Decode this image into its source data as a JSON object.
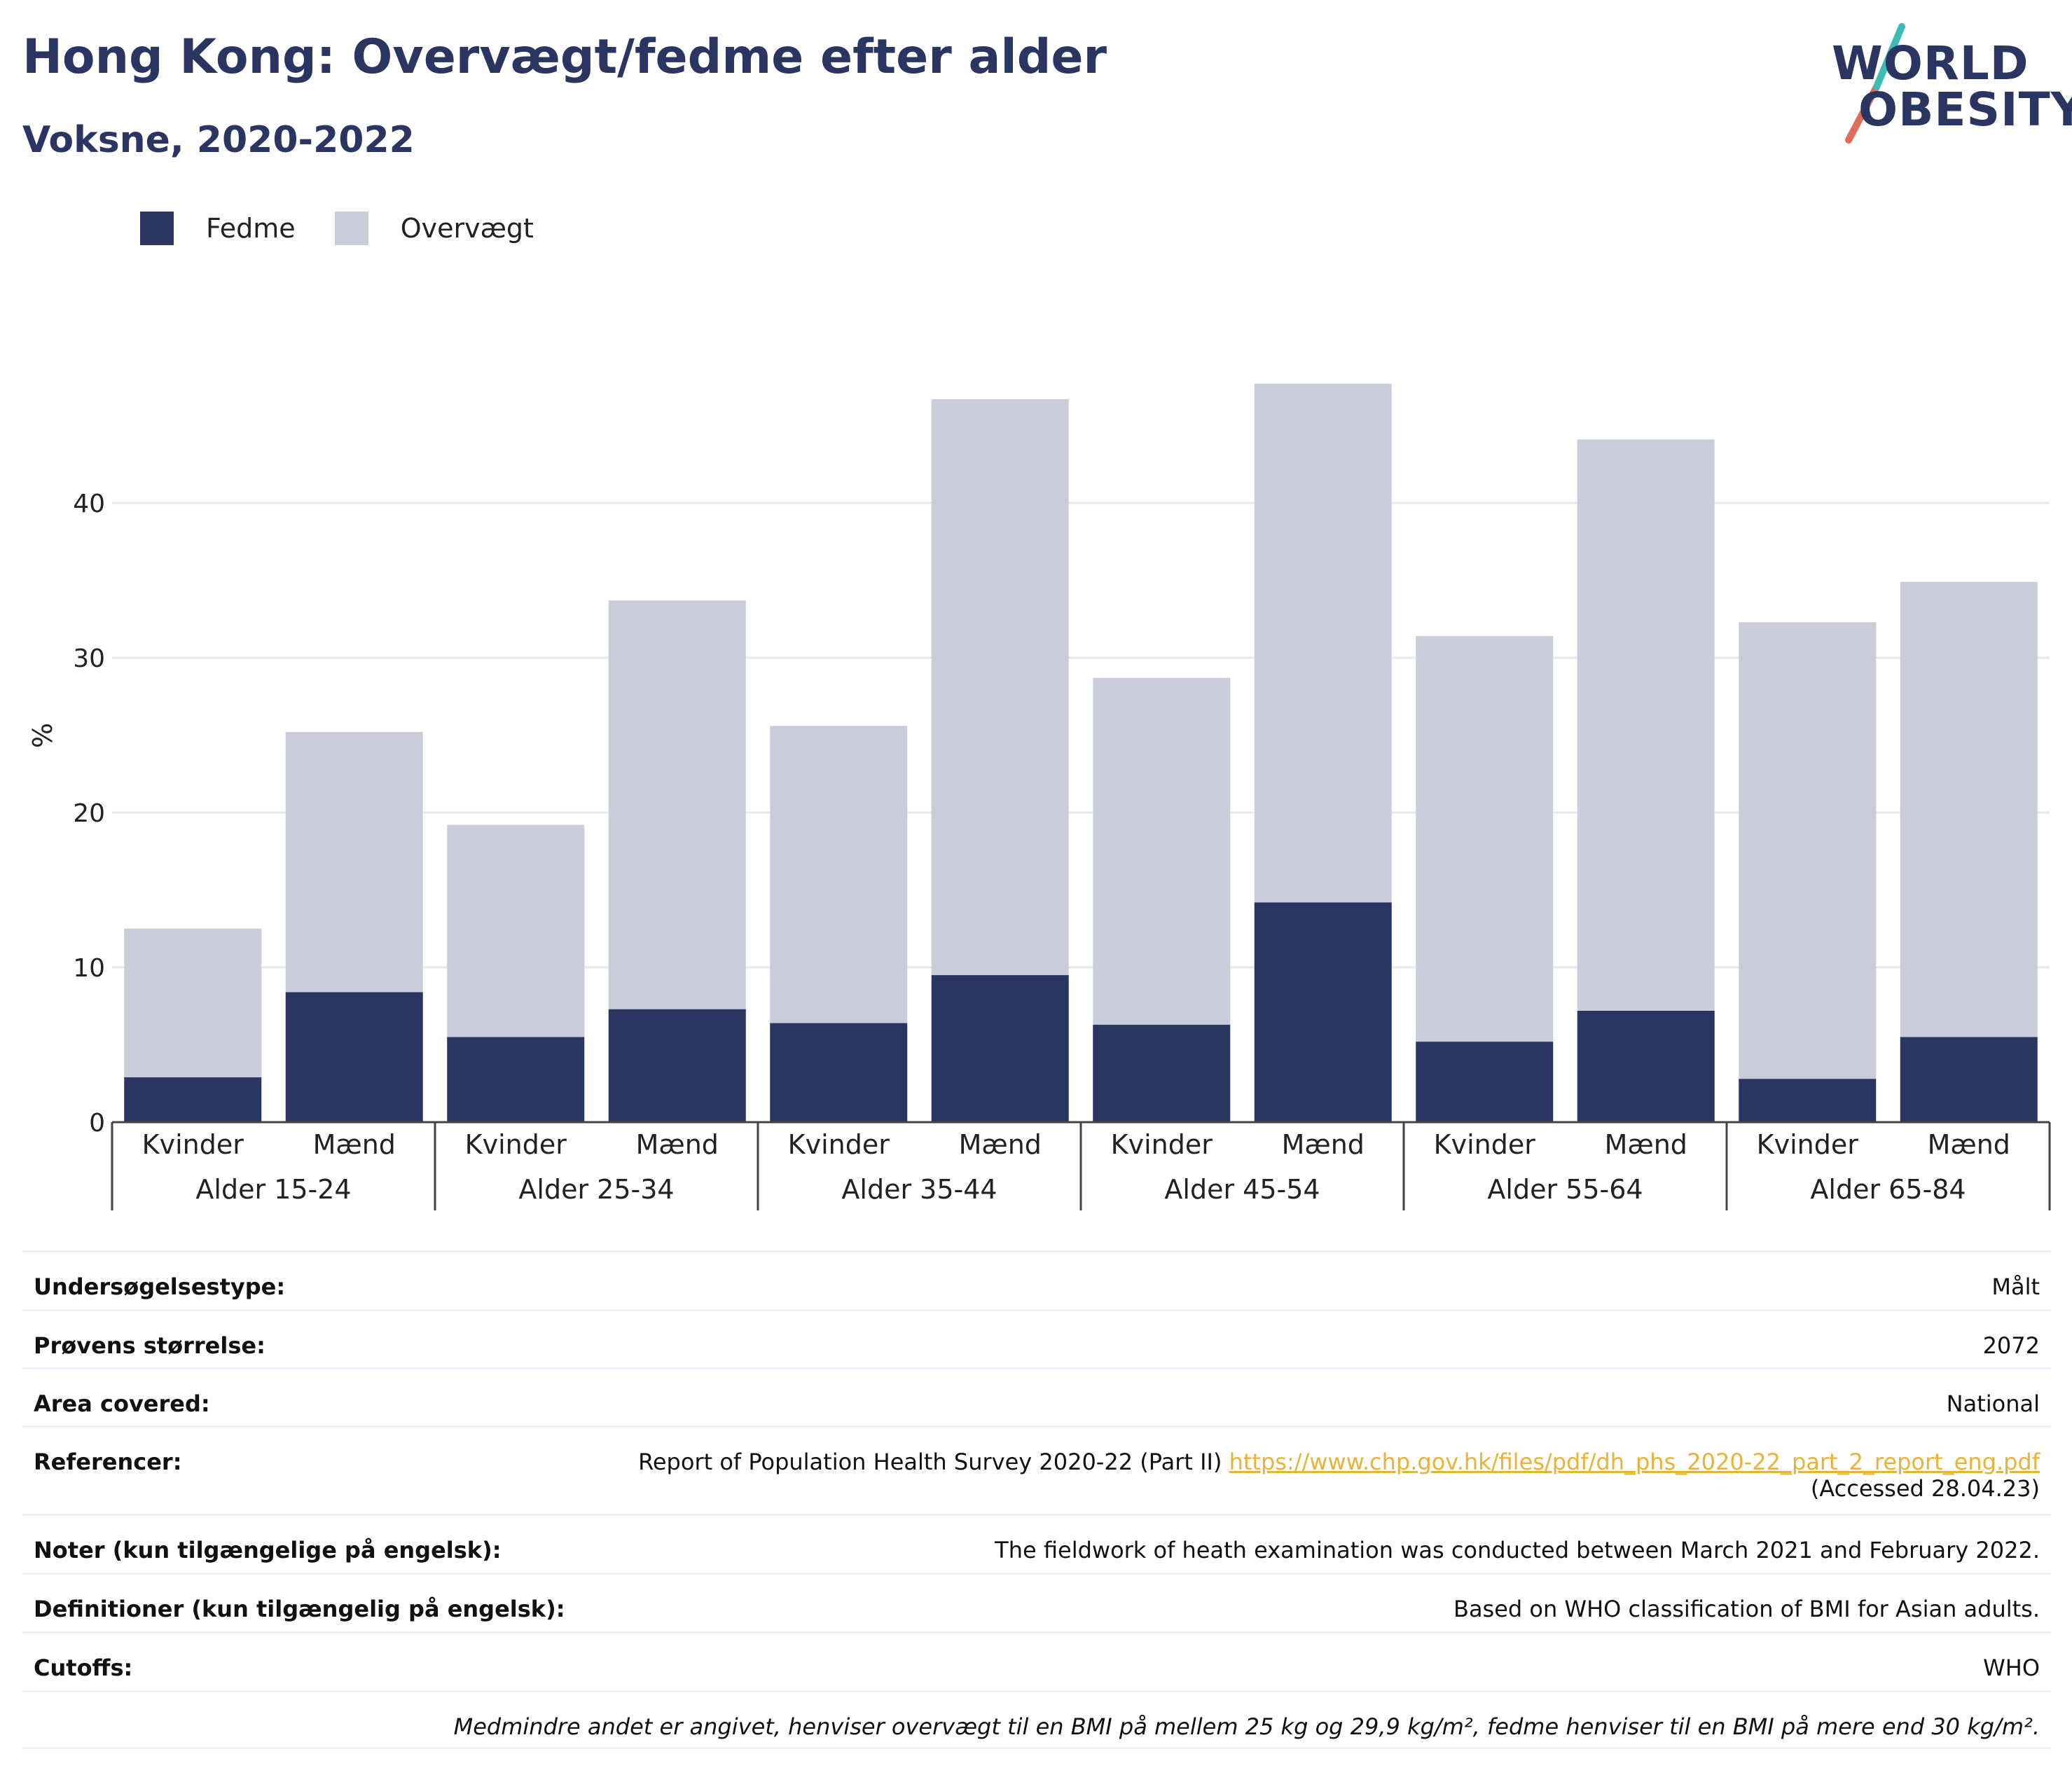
{
  "header": {
    "title": "Hong Kong: Overvægt/fedme efter alder",
    "subtitle": "Voksne, 2020-2022"
  },
  "logo": {
    "line1": "WORLD",
    "line2": "OBESITY",
    "name": "world-obesity-logo"
  },
  "legend": [
    {
      "label": "Fedme",
      "color": "#2a3561"
    },
    {
      "label": "Overvægt",
      "color": "#cacdd9"
    }
  ],
  "chart_data": {
    "type": "bar",
    "stacked": true,
    "ylabel": "%",
    "ylim": [
      0,
      50
    ],
    "yticks": [
      0,
      10,
      20,
      30,
      40
    ],
    "grid": true,
    "legend_position": "top-left",
    "groups": [
      "Alder 15-24",
      "Alder 25-34",
      "Alder 35-44",
      "Alder 45-54",
      "Alder 55-64",
      "Alder 65-84"
    ],
    "sexes": [
      "Kvinder",
      "Mænd"
    ],
    "categories": [
      "Alder 15-24 Kvinder",
      "Alder 15-24 Mænd",
      "Alder 25-34 Kvinder",
      "Alder 25-34 Mænd",
      "Alder 35-44 Kvinder",
      "Alder 35-44 Mænd",
      "Alder 45-54 Kvinder",
      "Alder 45-54 Mænd",
      "Alder 55-64 Kvinder",
      "Alder 55-64 Mænd",
      "Alder 65-84 Kvinder",
      "Alder 65-84 Mænd"
    ],
    "series": [
      {
        "name": "Fedme",
        "color": "#2a3561",
        "values": [
          2.9,
          8.4,
          5.5,
          7.3,
          6.4,
          9.5,
          6.3,
          14.2,
          5.2,
          7.2,
          2.8,
          5.5
        ]
      },
      {
        "name": "Overvægt",
        "color": "#cacdd9",
        "values": [
          9.6,
          16.8,
          13.7,
          26.4,
          19.2,
          37.2,
          22.4,
          33.5,
          26.2,
          36.9,
          29.5,
          29.4
        ]
      }
    ]
  },
  "info": {
    "survey_type": {
      "label": "Undersøgelsestype:",
      "value": "Målt"
    },
    "sample_size": {
      "label": "Prøvens størrelse:",
      "value": "2072"
    },
    "area": {
      "label": "Area covered:",
      "value": "National"
    },
    "references": {
      "label": "Referencer:",
      "text": "Report of Population Health Survey 2020-22 (Part II) ",
      "link": "https://www.chp.gov.hk/files/pdf/dh_phs_2020-22_part_2_report_eng.pdf",
      "accessed": "(Accessed 28.04.23)"
    },
    "notes": {
      "label": "Noter (kun tilgængelige på engelsk):",
      "value": "The fieldwork of heath examination was conducted between March 2021 and February 2022."
    },
    "definitions": {
      "label": "Definitioner (kun tilgængelig på engelsk):",
      "value": "Based on WHO classification of BMI for Asian adults."
    },
    "cutoffs": {
      "label": "Cutoffs:",
      "value": "WHO"
    },
    "footnote": "Medmindre andet er angivet, henviser overvægt til en BMI på mellem 25 kg og 29,9 kg/m², fedme henviser til en BMI på mere end 30 kg/m²."
  }
}
